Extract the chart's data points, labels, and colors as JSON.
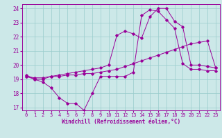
{
  "xlabel": "Windchill (Refroidissement éolien,°C)",
  "xlim": [
    -0.5,
    23.5
  ],
  "ylim": [
    16.8,
    24.3
  ],
  "yticks": [
    17,
    18,
    19,
    20,
    21,
    22,
    23,
    24
  ],
  "xticks": [
    0,
    1,
    2,
    3,
    4,
    5,
    6,
    7,
    8,
    9,
    10,
    11,
    12,
    13,
    14,
    15,
    16,
    17,
    18,
    19,
    20,
    21,
    22,
    23
  ],
  "bg_color": "#cce8e8",
  "line_color": "#990099",
  "grid_color": "#99cccc",
  "line1_y": [
    19.3,
    19.0,
    18.8,
    18.4,
    17.7,
    17.3,
    17.3,
    16.8,
    18.0,
    19.2,
    19.2,
    19.2,
    19.2,
    19.5,
    23.5,
    23.9,
    23.8,
    23.2,
    22.6,
    20.1,
    19.7,
    19.7,
    19.6,
    19.6
  ],
  "line2_y": [
    19.2,
    19.1,
    19.1,
    19.2,
    19.2,
    19.3,
    19.3,
    19.4,
    19.4,
    19.5,
    19.6,
    19.7,
    19.9,
    20.1,
    20.3,
    20.5,
    20.7,
    20.9,
    21.1,
    21.3,
    21.5,
    21.6,
    21.7,
    19.8
  ],
  "line3_y": [
    19.2,
    19.0,
    19.0,
    19.2,
    19.3,
    19.4,
    19.5,
    19.6,
    19.7,
    19.8,
    20.0,
    22.1,
    22.4,
    22.2,
    21.9,
    23.4,
    24.0,
    24.0,
    23.1,
    22.7,
    20.0,
    20.0,
    19.9,
    19.8
  ],
  "tick_fontsize": 5.0,
  "xlabel_fontsize": 5.5,
  "marker_size": 1.8,
  "line_width": 0.7
}
